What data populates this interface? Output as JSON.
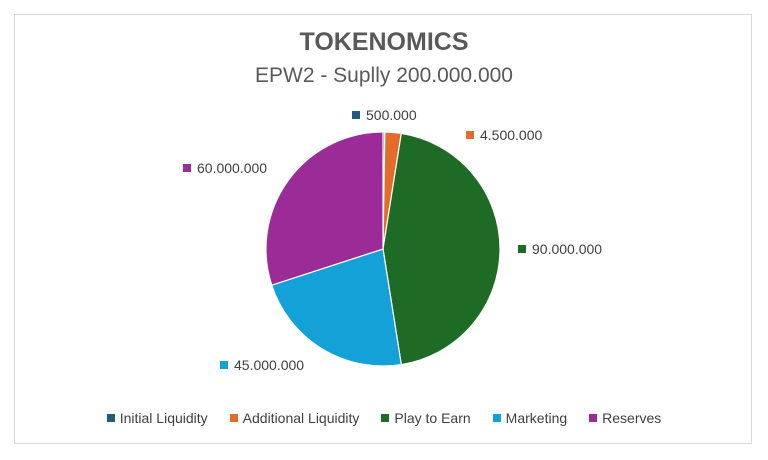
{
  "chart_data": {
    "type": "pie",
    "title": "TOKENOMICS",
    "subtitle": "EPW2 - Suplly 200.000.000",
    "categories": [
      "Initial Liquidity",
      "Additional Liquidity",
      "Play to Earn",
      "Marketing",
      "Reserves"
    ],
    "values": [
      500000,
      4500000,
      90000000,
      45000000,
      60000000
    ],
    "data_labels": [
      "500.000",
      "4.500.000",
      "90.000.000",
      "45.000.000",
      "60.000.000"
    ],
    "colors": [
      "#1f5c84",
      "#e46c2a",
      "#1e6b26",
      "#14a1d8",
      "#9b2b96"
    ],
    "legend_position": "bottom"
  }
}
